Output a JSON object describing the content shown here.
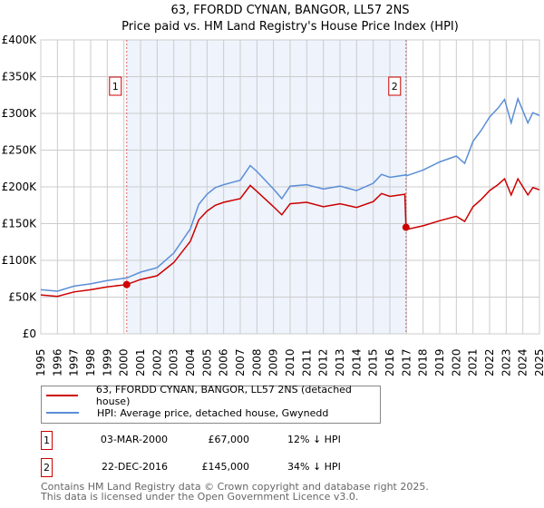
{
  "chart_data": {
    "type": "line",
    "title": "63, FFORDD CYNAN, BANGOR, LL57 2NS",
    "subtitle": "Price paid vs. HM Land Registry's House Price Index (HPI)",
    "xlim": [
      1995,
      2025
    ],
    "ylim": [
      0,
      400000
    ],
    "grid": true,
    "x_ticks": [
      "1995",
      "1996",
      "1997",
      "1998",
      "1999",
      "2000",
      "2001",
      "2002",
      "2003",
      "2004",
      "2005",
      "2006",
      "2007",
      "2008",
      "2009",
      "2010",
      "2011",
      "2012",
      "2013",
      "2014",
      "2015",
      "2016",
      "2017",
      "2018",
      "2019",
      "2020",
      "2021",
      "2022",
      "2023",
      "2024",
      "2025"
    ],
    "y_ticks": [
      "£0",
      "£50K",
      "£100K",
      "£150K",
      "£200K",
      "£250K",
      "£300K",
      "£350K",
      "£400K"
    ],
    "y_tick_values": [
      0,
      50000,
      100000,
      150000,
      200000,
      250000,
      300000,
      350000,
      400000
    ],
    "x": [
      1995,
      1996,
      1997,
      1998,
      1999,
      2000.17,
      2001,
      2002,
      2003,
      2004,
      2004.5,
      2005,
      2005.5,
      2006,
      2007,
      2007.6,
      2008,
      2009,
      2009.5,
      2010,
      2011,
      2012,
      2013,
      2014,
      2015,
      2015.5,
      2016,
      2016.9,
      2016.97,
      2017,
      2018,
      2019,
      2020,
      2020.5,
      2021,
      2021.5,
      2022,
      2022.5,
      2022.9,
      2023.3,
      2023.7,
      2024.3,
      2024.6,
      2025
    ],
    "series": [
      {
        "name": "63, FFORDD CYNAN, BANGOR, LL57 2NS (detached house)",
        "color": "#cc0000",
        "values": [
          53000,
          51000,
          57000,
          60000,
          64000,
          67000,
          74000,
          79000,
          97000,
          126000,
          155000,
          167000,
          175000,
          179000,
          184000,
          202000,
          194000,
          173000,
          162000,
          177000,
          179000,
          173000,
          177000,
          172000,
          180000,
          191000,
          187000,
          190000,
          145000,
          142000,
          147000,
          154000,
          160000,
          153000,
          173000,
          183000,
          195000,
          203000,
          211000,
          189000,
          211000,
          189000,
          199000,
          196000
        ]
      },
      {
        "name": "HPI: Average price, detached house, Gwynedd",
        "color": "#5b8ed6",
        "values": [
          60000,
          58000,
          65000,
          68000,
          72500,
          76000,
          84000,
          90000,
          110000,
          143000,
          176000,
          190000,
          199000,
          203000,
          209000,
          229000,
          221000,
          197000,
          184000,
          201000,
          203000,
          197000,
          201000,
          195000,
          205000,
          217000,
          213000,
          216000,
          217000,
          215000,
          223000,
          234000,
          242000,
          232000,
          262000,
          277000,
          295000,
          307000,
          319000,
          287000,
          320000,
          287000,
          301000,
          297000
        ]
      }
    ],
    "sales": [
      {
        "label": "1",
        "x": 2000.17,
        "value": 67000
      },
      {
        "label": "2",
        "x": 2016.97,
        "value": 145000
      }
    ],
    "shaded_range": [
      2000.17,
      2016.97
    ]
  },
  "legend": {
    "property": "63, FFORDD CYNAN, BANGOR, LL57 2NS (detached house)",
    "hpi": "HPI: Average price, detached house, Gwynedd"
  },
  "transactions": [
    {
      "num": "1",
      "date": "03-MAR-2000",
      "price": "£67,000",
      "delta": "12% ↓ HPI"
    },
    {
      "num": "2",
      "date": "22-DEC-2016",
      "price": "£145,000",
      "delta": "34% ↓ HPI"
    }
  ],
  "footer": {
    "line1": "Contains HM Land Registry data © Crown copyright and database right 2025.",
    "line2": "This data is licensed under the Open Government Licence v3.0."
  },
  "colors": {
    "red": "#cc0000",
    "blue": "#5b8ed6",
    "shade": "#eef3fc",
    "grid": "#cccccc"
  }
}
